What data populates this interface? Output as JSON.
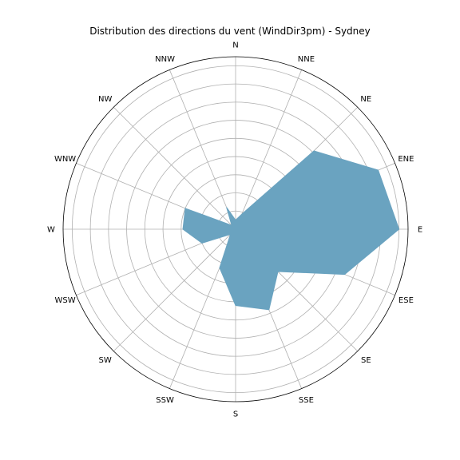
{
  "chart_data": {
    "type": "polar-area",
    "title": "Distribution des directions du vent (WindDir3pm) - Sydney",
    "directions": [
      "N",
      "NNE",
      "NE",
      "ENE",
      "E",
      "ESE",
      "SE",
      "SSE",
      "S",
      "SSW",
      "SW",
      "WSW",
      "W",
      "WNW",
      "NW",
      "NNW"
    ],
    "values": [
      0.5,
      0.9,
      6.1,
      8.5,
      9.0,
      6.5,
      3.3,
      4.8,
      4.2,
      2.3,
      0.4,
      2.0,
      2.9,
      3.0,
      0.3,
      1.3
    ],
    "rlim": [
      0,
      9.5
    ],
    "rings": [
      1,
      2,
      3,
      4,
      5,
      6,
      7,
      8,
      9
    ],
    "grid": true,
    "fill_color": "#6aa3c0"
  }
}
